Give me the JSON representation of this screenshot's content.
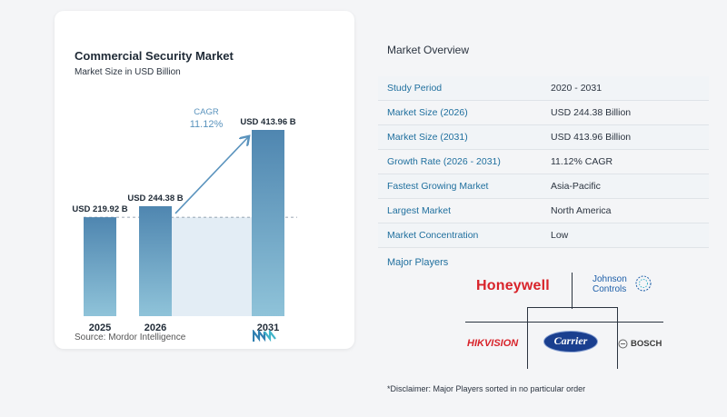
{
  "chart": {
    "title": "Commercial Security Market",
    "subtitle": "Market Size in USD Billion",
    "source": "Source:  Mordor Intelligence",
    "cagr_label": "CAGR",
    "cagr_value": "11.12%"
  },
  "chart_data": {
    "type": "bar",
    "categories": [
      "2025",
      "2026",
      "2031"
    ],
    "values": [
      219.92,
      244.38,
      413.96
    ],
    "data_labels": [
      "USD 219.92 B",
      "USD 244.38 B",
      "USD 413.96 B"
    ],
    "title": "Commercial Security Market",
    "subtitle": "Market Size in USD Billion",
    "xlabel": "",
    "ylabel": "",
    "colors": {
      "bar": "#5a93bd",
      "bar_top": "#4f86b0",
      "bar_end": "#8fc3d9",
      "band": "#e3edf5",
      "arrow": "#5a93bd",
      "cagr": "#5a93bd"
    }
  },
  "overview": {
    "title": "Market Overview",
    "rows": [
      {
        "label": "Study Period",
        "value": "2020 - 2031"
      },
      {
        "label": "Market Size (2026)",
        "value": "USD 244.38 Billion"
      },
      {
        "label": "Market Size (2031)",
        "value": "USD 413.96 Billion"
      },
      {
        "label": "Growth Rate (2026 - 2031)",
        "value": "11.12% CAGR"
      },
      {
        "label": "Fastest Growing Market",
        "value": "Asia-Pacific"
      },
      {
        "label": "Largest Market",
        "value": "North America"
      },
      {
        "label": "Market Concentration",
        "value": "Low"
      }
    ]
  },
  "players": {
    "title": "Major Players",
    "logos": {
      "honeywell": "Honeywell",
      "johnson_line1": "Johnson",
      "johnson_line2": "Controls",
      "hikvision": "HIKVISION",
      "carrier": "Carrier",
      "bosch": "BOSCH"
    },
    "colors": {
      "honeywell": "#d8232a",
      "johnson": "#1c5ea8",
      "hikvision": "#d8232a",
      "carrier": "#1a3f8f",
      "bosch": "#3a3a3a"
    }
  },
  "disclaimer": "*Disclaimer: Major Players sorted in no particular order"
}
